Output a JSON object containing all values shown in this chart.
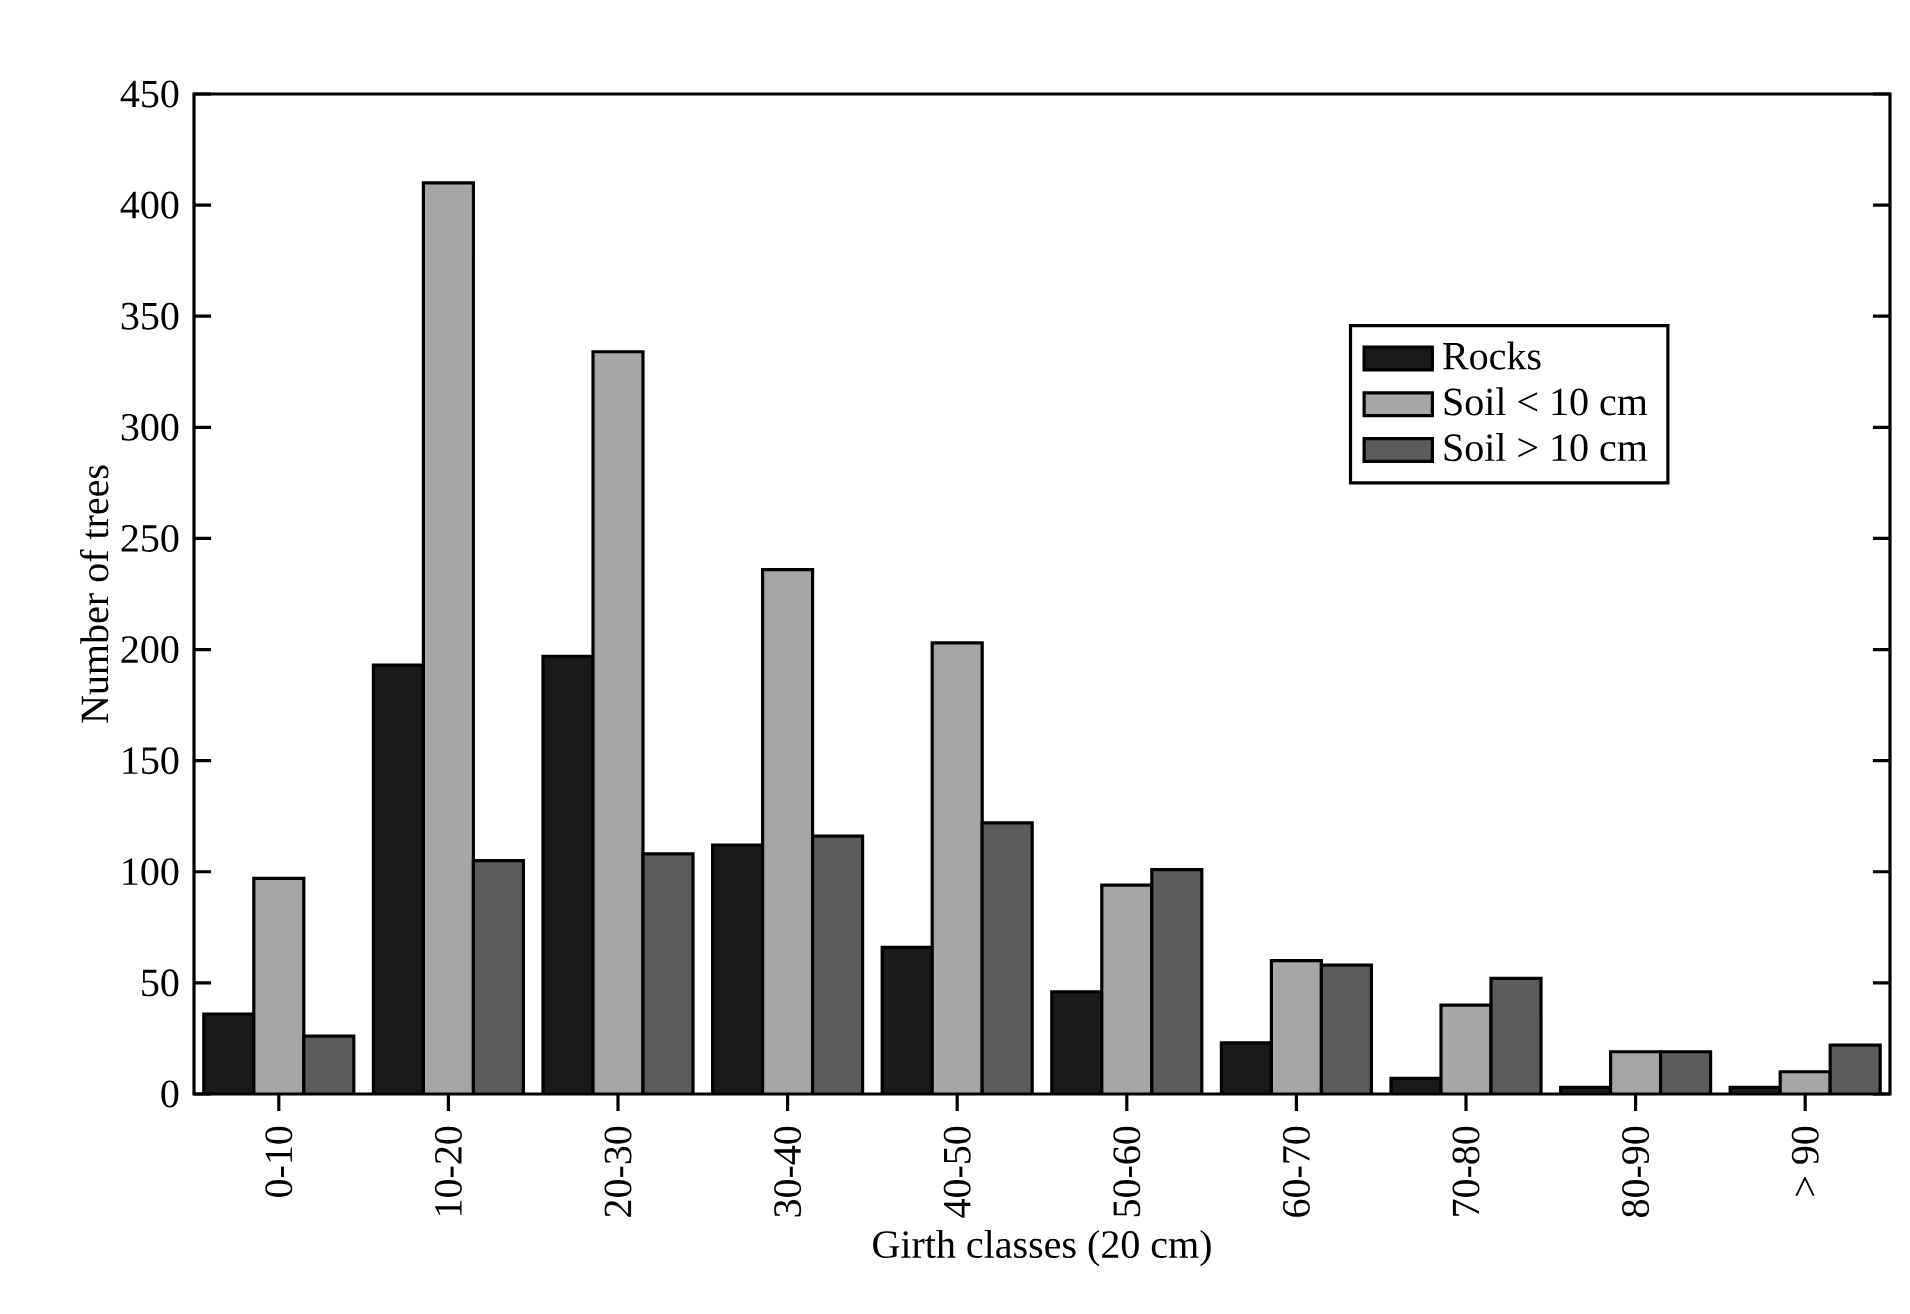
{
  "chart_data": {
    "type": "bar",
    "xlabel": "Girth classes (20 cm)",
    "ylabel": "Number of trees",
    "categories": [
      "0-10",
      "10-20",
      "20-30",
      "30-40",
      "40-50",
      "50-60",
      "60-70",
      "70-80",
      "80-90",
      "> 90"
    ],
    "series": [
      {
        "name": "Rocks",
        "color": "#1a1a1a",
        "values": [
          36,
          193,
          197,
          112,
          66,
          46,
          23,
          7,
          3,
          3
        ]
      },
      {
        "name": "Soil < 10 cm",
        "color": "#a6a6a6",
        "values": [
          97,
          410,
          334,
          236,
          203,
          94,
          60,
          40,
          19,
          10
        ]
      },
      {
        "name": "Soil > 10 cm",
        "color": "#5c5c5c",
        "values": [
          26,
          105,
          108,
          116,
          122,
          101,
          58,
          52,
          19,
          22
        ]
      }
    ],
    "ylim": [
      0,
      450
    ],
    "yticks": [
      0,
      50,
      100,
      150,
      200,
      250,
      300,
      350,
      400,
      450
    ],
    "grid": false,
    "legend": "top right"
  }
}
